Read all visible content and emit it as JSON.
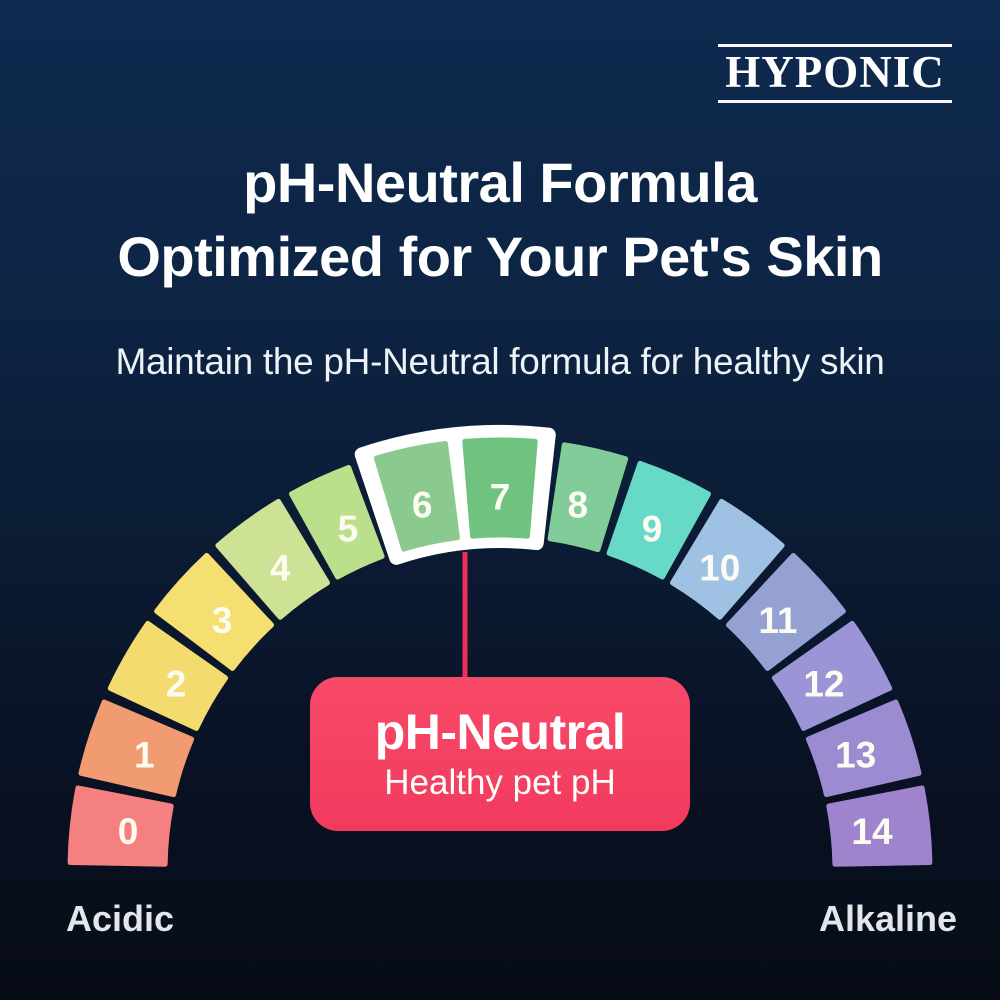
{
  "brand": {
    "name": "HYPONIC"
  },
  "header": {
    "title_line1": "pH-Neutral Formula",
    "title_line2": "Optimized for Your Pet's Skin",
    "subtitle": "Maintain the pH-Neutral formula for healthy skin"
  },
  "callout": {
    "title": "pH-Neutral",
    "subtitle": "Healthy pet pH",
    "bg_color": "#f23f5f",
    "connector_color": "#ee2f5b"
  },
  "scale_labels": {
    "left": "Acidic",
    "right": "Alkaline"
  },
  "chart_data": {
    "type": "gauge",
    "title": "pH scale semicircle",
    "categories": [
      "0",
      "1",
      "2",
      "3",
      "4",
      "5",
      "6",
      "7",
      "8",
      "9",
      "10",
      "11",
      "12",
      "13",
      "14"
    ],
    "colors": [
      "#f58080",
      "#f19b72",
      "#f3db6d",
      "#f4df70",
      "#cde295",
      "#bbdf8a",
      "#8bca8e",
      "#70c37f",
      "#81cc98",
      "#66d9c7",
      "#9fc1e4",
      "#94a1d2",
      "#9b94d6",
      "#9d8bd1",
      "#9f83cc"
    ],
    "highlight": [
      6,
      7
    ],
    "highlight_frame_color": "#ffffff",
    "label_color": "#fdfcf2",
    "arc_span_degrees": 180,
    "annotation": {
      "text": "pH-Neutral",
      "sub": "Healthy pet pH",
      "points_to": "boundary between pH 6 and 7"
    }
  }
}
